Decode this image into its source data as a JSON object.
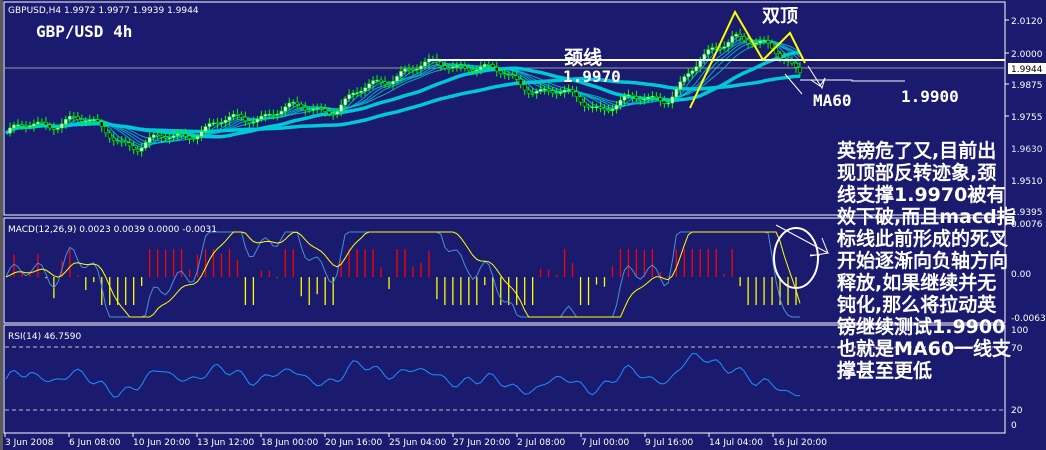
{
  "main_panel": {
    "info": "GBPUSD,H4  1.9972 1.9977 1.9939 1.9944",
    "title": "GBP/USD 4h",
    "neckline_label": "颈线",
    "neckline_value": "1.9970",
    "double_top_label": "双顶",
    "ma60_label": "MA60",
    "support_value": "1.9900",
    "current_price": "1.9944"
  },
  "macd_panel": {
    "info": "MACD(12,26,9) 0.0023 0.0039 0.0000 -0.0031"
  },
  "rsi_panel": {
    "info": "RSI(14) 46.7590"
  },
  "annotation": {
    "lines": [
      "英镑危了又,目前出",
      "现顶部反转迹象,颈",
      "线支撑1.9970被有",
      "效下破,而且macd指",
      "标线此前形成的死叉",
      "开始逐渐向负轴方向",
      "释放,如果继续并无",
      "钝化,那么将拉动英",
      "镑继续测试1.9900",
      "也就是MA60一线支",
      "撑甚至更低"
    ]
  },
  "price_axis": [
    "2.0120",
    "2.0000",
    "1.9875",
    "1.9755",
    "1.9630",
    "1.9510",
    "1.9395"
  ],
  "macd_axis": [
    "0.0076",
    "0.00",
    "-0.0063"
  ],
  "rsi_axis": [
    "100",
    "70",
    "20",
    "0"
  ],
  "time_axis": [
    "3 Jun 2008",
    "6 Jun 08:00",
    "10 Jun 20:00",
    "13 Jun 12:00",
    "18 Jun 00:00",
    "20 Jun 16:00",
    "25 Jun 04:00",
    "27 Jun 20:00",
    "2 Jul 08:00",
    "7 Jul 00:00",
    "9 Jul 16:00",
    "14 Jul 04:00",
    "16 Jul 20:00"
  ],
  "colors": {
    "background": "#1a1a6e",
    "candle": "#00ff00",
    "ma": "#00c8d8",
    "macd_pos": "#ff0000",
    "macd_neg": "#ffff00",
    "signal": "#ffff00",
    "macd_line": "#4a8fd8",
    "rsi": "#1e90ff",
    "pattern": "#ffff00",
    "text": "#ffffff"
  },
  "chart_data": [
    {
      "type": "candlestick",
      "title": "GBP/USD 4h",
      "symbol": "GBPUSD,H4",
      "ohlc_last": {
        "open": 1.9972,
        "high": 1.9977,
        "low": 1.9939,
        "close": 1.9944
      },
      "x": [
        "3 Jun 2008",
        "6 Jun 08:00",
        "10 Jun 20:00",
        "13 Jun 12:00",
        "18 Jun 00:00",
        "20 Jun 16:00",
        "25 Jun 04:00",
        "27 Jun 20:00",
        "2 Jul 08:00",
        "7 Jul 00:00",
        "9 Jul 16:00",
        "14 Jul 04:00",
        "16 Jul 20:00"
      ],
      "close_approx": [
        1.97,
        1.976,
        1.965,
        1.972,
        1.978,
        1.98,
        1.994,
        1.996,
        1.987,
        1.98,
        1.984,
        2.008,
        1.9944
      ],
      "ylim": [
        1.9395,
        2.016
      ],
      "annotations": [
        {
          "text": "颈线 1.9970",
          "type": "hline",
          "y": 1.997
        },
        {
          "text": "双顶",
          "type": "pattern"
        },
        {
          "text": "MA60",
          "type": "label"
        },
        {
          "text": "1.9900",
          "type": "hline",
          "y": 1.99
        }
      ]
    },
    {
      "type": "bar+line",
      "title": "MACD(12,26,9)",
      "values": {
        "macd": 0.0023,
        "signal": 0.0039,
        "hist": 0.0,
        "extra": -0.0031
      },
      "ylim": [
        -0.0063,
        0.0076
      ]
    },
    {
      "type": "line",
      "title": "RSI(14)",
      "last": 46.759,
      "ylim": [
        0,
        100
      ],
      "levels": [
        70,
        20
      ]
    }
  ]
}
